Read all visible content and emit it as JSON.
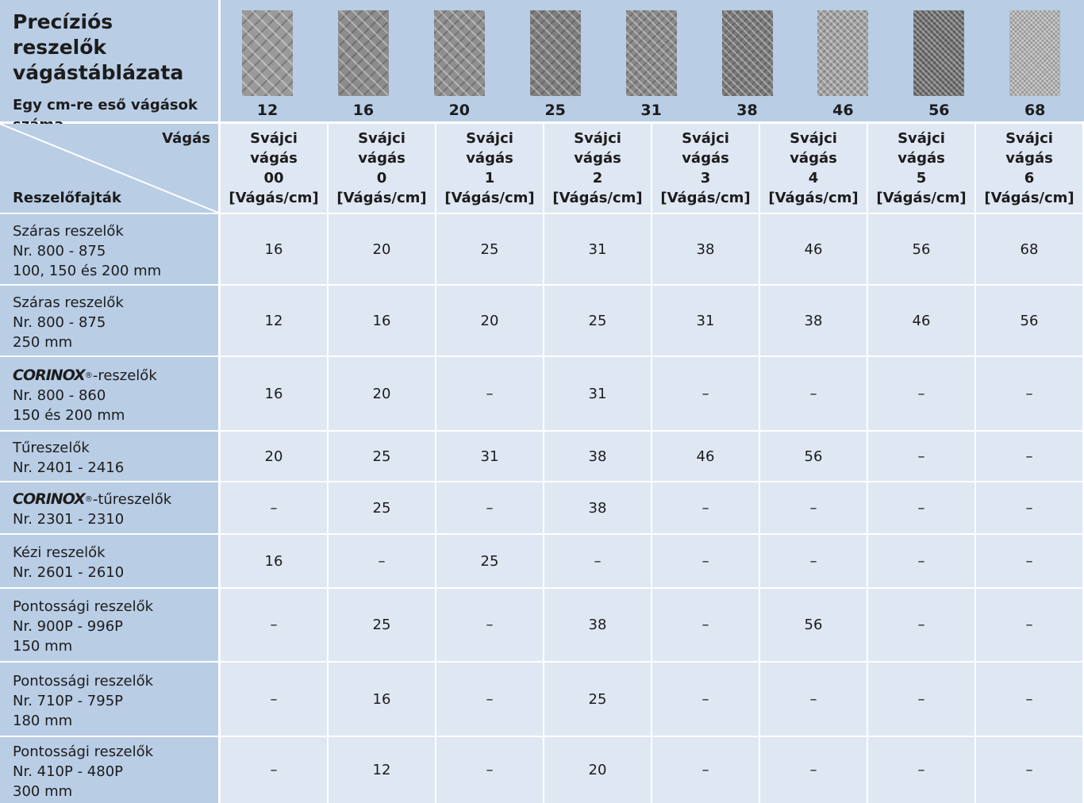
{
  "header": {
    "title": "Precíziós reszelők vágástáblázata",
    "subtitle": "Egy cm-re eső vágások száma"
  },
  "swatches": [
    12,
    16,
    20,
    25,
    31,
    38,
    46,
    56,
    68
  ],
  "corner": {
    "top": "Vágás",
    "bottom": "Reszelőfajták"
  },
  "columns": [
    {
      "name": "Svájci vágás",
      "grade": "00",
      "unit": "[Vágás/cm]"
    },
    {
      "name": "Svájci vágás",
      "grade": "0",
      "unit": "[Vágás/cm]"
    },
    {
      "name": "Svájci vágás",
      "grade": "1",
      "unit": "[Vágás/cm]"
    },
    {
      "name": "Svájci vágás",
      "grade": "2",
      "unit": "[Vágás/cm]"
    },
    {
      "name": "Svájci vágás",
      "grade": "3",
      "unit": "[Vágás/cm]"
    },
    {
      "name": "Svájci vágás",
      "grade": "4",
      "unit": "[Vágás/cm]"
    },
    {
      "name": "Svájci vágás",
      "grade": "5",
      "unit": "[Vágás/cm]"
    },
    {
      "name": "Svájci vágás",
      "grade": "6",
      "unit": "[Vágás/cm]"
    }
  ],
  "rows": [
    {
      "lines": [
        "Száras reszelők",
        "Nr. 800 - 875",
        "100, 150 és 200 mm"
      ],
      "values": [
        16,
        20,
        25,
        31,
        38,
        46,
        56,
        68
      ]
    },
    {
      "lines": [
        "Száras reszelők",
        "Nr. 800 - 875",
        "250 mm"
      ],
      "values": [
        12,
        16,
        20,
        25,
        31,
        38,
        46,
        56
      ]
    },
    {
      "brand": "CORINOX",
      "brand_mark": "®",
      "lines": [
        "-reszelők",
        "Nr. 800 - 860",
        "150 és 200 mm"
      ],
      "values": [
        16,
        20,
        "–",
        31,
        "–",
        "–",
        "–",
        "–"
      ]
    },
    {
      "lines": [
        "Tűreszelők",
        "Nr. 2401 - 2416"
      ],
      "values": [
        20,
        25,
        31,
        38,
        46,
        56,
        "–",
        "–"
      ]
    },
    {
      "brand": "CORINOX",
      "brand_mark": "®",
      "lines": [
        "-tűreszelők",
        "Nr. 2301 - 2310"
      ],
      "values": [
        "–",
        25,
        "–",
        38,
        "–",
        "–",
        "–",
        "–"
      ]
    },
    {
      "lines": [
        "Kézi reszelők",
        "Nr. 2601 - 2610"
      ],
      "values": [
        16,
        "–",
        25,
        "–",
        "–",
        "–",
        "–",
        "–"
      ]
    },
    {
      "lines": [
        "Pontossági reszelők",
        "Nr. 900P - 996P",
        "150 mm"
      ],
      "values": [
        "–",
        25,
        "–",
        38,
        "–",
        56,
        "–",
        "–"
      ]
    },
    {
      "lines": [
        "Pontossági reszelők",
        "Nr. 710P - 795P",
        "180 mm"
      ],
      "values": [
        "–",
        16,
        "–",
        25,
        "–",
        "–",
        "–",
        "–"
      ]
    },
    {
      "lines": [
        "Pontossági reszelők",
        "Nr. 410P - 480P",
        "300 mm"
      ],
      "values": [
        "–",
        12,
        "–",
        20,
        "–",
        "–",
        "–",
        "–"
      ]
    }
  ]
}
